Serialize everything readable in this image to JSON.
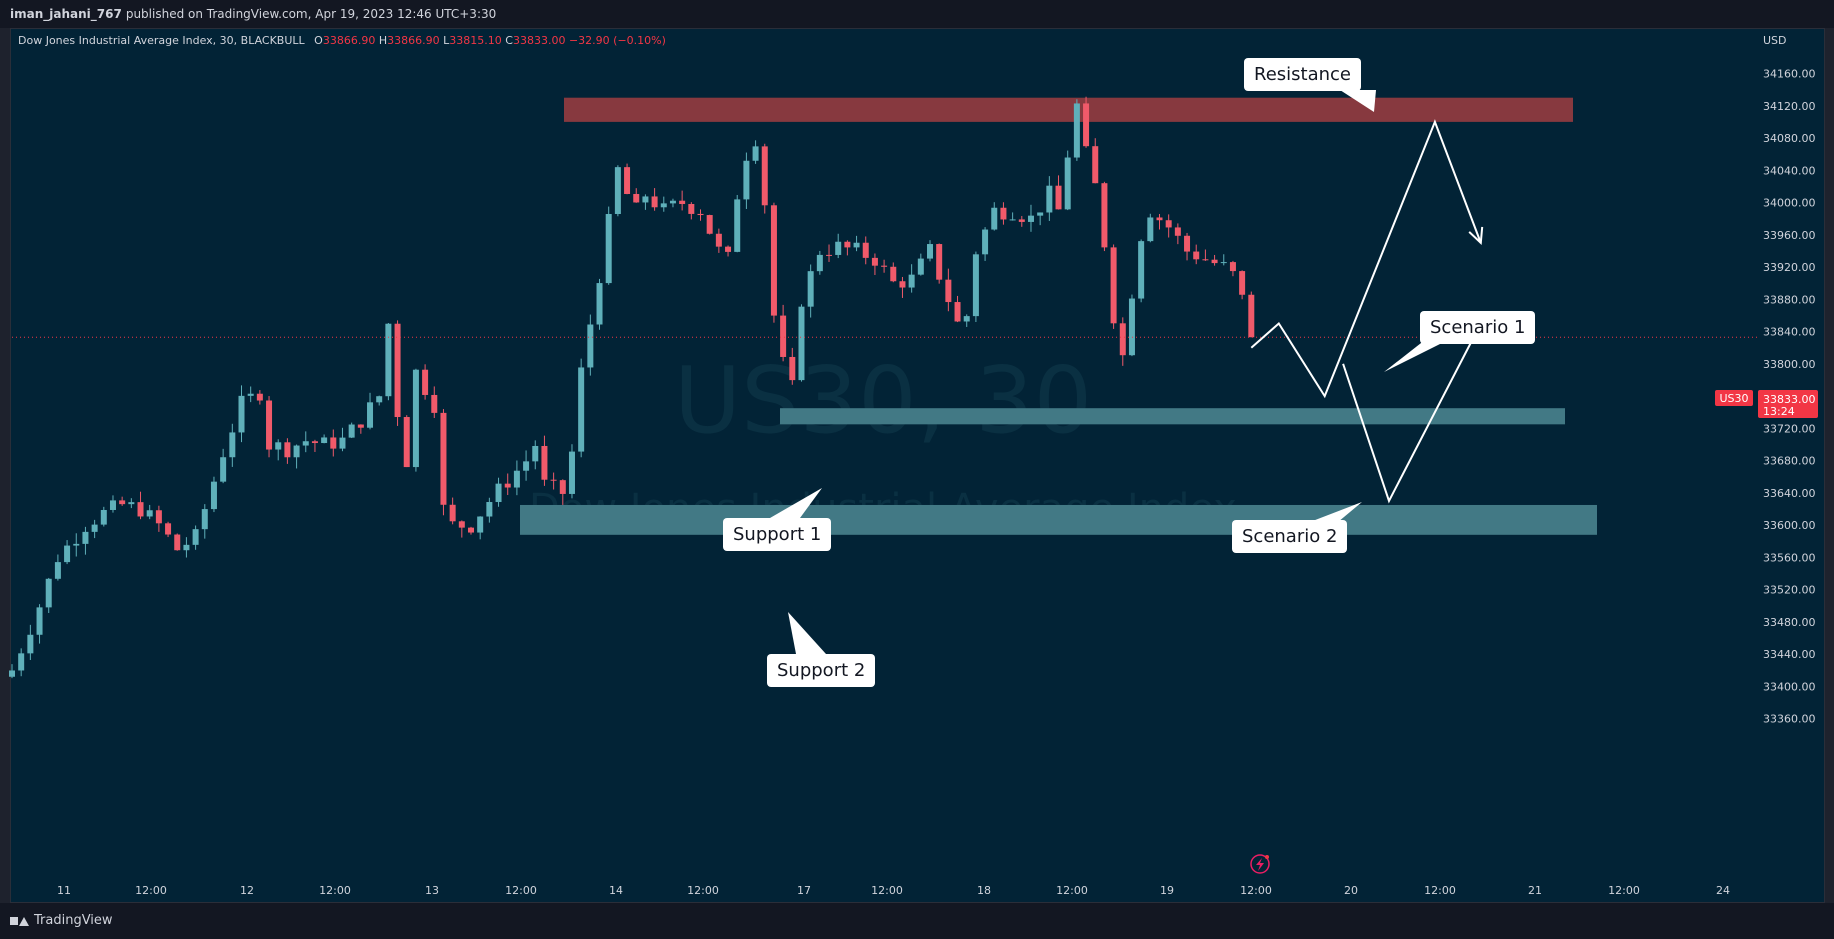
{
  "header": {
    "publisher": "iman_jahani_767",
    "published_text": "published on TradingView.com, Apr 19, 2023 12:46 UTC+3:30"
  },
  "legend": {
    "symbol": "Dow Jones Industrial Average Index, 30, BLACKBULL",
    "o_label": "O",
    "o": "33866.90",
    "h_label": "H",
    "h": "33866.90",
    "l_label": "L",
    "l": "33815.10",
    "c_label": "C",
    "c": "33833.00",
    "change": "−32.90 (−0.10%)"
  },
  "watermark": {
    "line1": "US30, 30",
    "line2": "Dow Jones Industrial Average Index"
  },
  "footer": {
    "brand": "TradingView"
  },
  "price_tag": {
    "symbol": "US30",
    "price": "33833.00",
    "countdown": "13:24"
  },
  "colors": {
    "background": "#022336",
    "up": "#5fb0ba",
    "down": "#f05a6a",
    "resistance_zone": "#87393f",
    "support_zone": "#427985",
    "price_tag": "#f23645"
  },
  "annotations": {
    "resistance": "Resistance",
    "support1": "Support 1",
    "support2": "Support 2",
    "scenario1": "Scenario 1",
    "scenario2": "Scenario 2"
  },
  "chart_data": {
    "type": "candlestick",
    "currency": "USD",
    "y_ticks": [
      34160,
      34120,
      34080,
      34040,
      34000,
      33960,
      33920,
      33880,
      33840,
      33800,
      33760,
      33720,
      33680,
      33640,
      33600,
      33560,
      33520,
      33480,
      33440,
      33400,
      33360
    ],
    "x_ticks": [
      "11",
      "12:00",
      "12",
      "12:00",
      "13",
      "12:00",
      "14",
      "12:00",
      "17",
      "12:00",
      "18",
      "12:00",
      "19",
      "12:00",
      "20",
      "12:00",
      "21",
      "12:00",
      "24"
    ],
    "current_price": 33833.0,
    "close_path": [
      [
        0,
        33420
      ],
      [
        3,
        33500
      ],
      [
        5,
        33560
      ],
      [
        8,
        33600
      ],
      [
        10,
        33615
      ],
      [
        12,
        33625
      ],
      [
        14,
        33620
      ],
      [
        16,
        33600
      ],
      [
        18,
        33570
      ],
      [
        20,
        33585
      ],
      [
        21,
        33620
      ],
      [
        23,
        33690
      ],
      [
        25,
        33750
      ],
      [
        27,
        33765
      ],
      [
        28,
        33700
      ],
      [
        30,
        33695
      ],
      [
        32,
        33705
      ],
      [
        34,
        33700
      ],
      [
        36,
        33705
      ],
      [
        38,
        33730
      ],
      [
        40,
        33760
      ],
      [
        41,
        33850
      ],
      [
        42,
        33740
      ],
      [
        43,
        33680
      ],
      [
        44,
        33790
      ],
      [
        46,
        33750
      ],
      [
        47,
        33620
      ],
      [
        48,
        33600
      ],
      [
        50,
        33600
      ],
      [
        52,
        33630
      ],
      [
        54,
        33655
      ],
      [
        56,
        33680
      ],
      [
        57,
        33700
      ],
      [
        58,
        33650
      ],
      [
        60,
        33640
      ],
      [
        61,
        33690
      ],
      [
        62,
        33790
      ],
      [
        64,
        33910
      ],
      [
        66,
        34040
      ],
      [
        67,
        34010
      ],
      [
        68,
        33990
      ],
      [
        69,
        34010
      ],
      [
        71,
        33990
      ],
      [
        73,
        34000
      ],
      [
        75,
        33990
      ],
      [
        77,
        33940
      ],
      [
        78,
        33930
      ],
      [
        79,
        34010
      ],
      [
        80,
        34060
      ],
      [
        81,
        34080
      ],
      [
        82,
        34000
      ],
      [
        83,
        33860
      ],
      [
        84,
        33800
      ],
      [
        85,
        33770
      ],
      [
        86,
        33880
      ],
      [
        88,
        33940
      ],
      [
        90,
        33945
      ],
      [
        92,
        33940
      ],
      [
        94,
        33930
      ],
      [
        96,
        33900
      ],
      [
        98,
        33905
      ],
      [
        100,
        33940
      ],
      [
        102,
        33880
      ],
      [
        103,
        33850
      ],
      [
        104,
        33860
      ],
      [
        105,
        33940
      ],
      [
        107,
        33990
      ],
      [
        109,
        33990
      ],
      [
        111,
        33980
      ],
      [
        113,
        34010
      ],
      [
        114,
        33990
      ],
      [
        115,
        34060
      ],
      [
        116,
        34120
      ],
      [
        117,
        34060
      ],
      [
        118,
        34020
      ],
      [
        119,
        33950
      ],
      [
        120,
        33860
      ],
      [
        121,
        33810
      ],
      [
        122,
        33890
      ],
      [
        123,
        33960
      ],
      [
        124,
        33990
      ],
      [
        126,
        33970
      ],
      [
        128,
        33940
      ],
      [
        130,
        33930
      ],
      [
        132,
        33920
      ],
      [
        133,
        33910
      ],
      [
        134,
        33880
      ],
      [
        135,
        33833
      ]
    ],
    "zones": [
      {
        "label": "Resistance",
        "low": 34100,
        "high": 34130
      },
      {
        "label": "Support 1",
        "low": 33725,
        "high": 33745
      },
      {
        "label": "Support 2",
        "low": 33588,
        "high": 33625
      }
    ],
    "scenario1_path": [
      [
        135,
        33820
      ],
      [
        138,
        33850
      ],
      [
        143,
        33760
      ],
      [
        155,
        34100
      ],
      [
        160,
        33950
      ]
    ],
    "scenario2_path": [
      [
        145,
        33800
      ],
      [
        150,
        33630
      ],
      [
        160,
        33850
      ]
    ]
  }
}
